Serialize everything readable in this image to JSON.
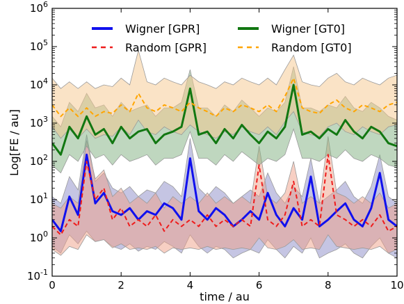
{
  "chart_data": {
    "type": "line",
    "xlabel": "time / au",
    "ylabel": "Log[FE / au]",
    "xlim": [
      0,
      10
    ],
    "ylim": [
      0.1,
      1000000
    ],
    "yscale": "log",
    "grid": false,
    "legend_position": "top",
    "x_ticks": [
      "0",
      "2",
      "4",
      "6",
      "8",
      "10"
    ],
    "y_ticks": [
      {
        "base": "10",
        "exp": "-1"
      },
      {
        "base": "10",
        "exp": "0"
      },
      {
        "base": "10",
        "exp": "1"
      },
      {
        "base": "10",
        "exp": "2"
      },
      {
        "base": "10",
        "exp": "3"
      },
      {
        "base": "10",
        "exp": "4"
      },
      {
        "base": "10",
        "exp": "5"
      },
      {
        "base": "10",
        "exp": "6"
      }
    ],
    "x": [
      0.0,
      0.25,
      0.5,
      0.75,
      1.0,
      1.25,
      1.5,
      1.75,
      2.0,
      2.25,
      2.5,
      2.75,
      3.0,
      3.25,
      3.5,
      3.75,
      4.0,
      4.25,
      4.5,
      4.75,
      5.0,
      5.25,
      5.5,
      5.75,
      6.0,
      6.25,
      6.5,
      6.75,
      7.0,
      7.25,
      7.5,
      7.75,
      8.0,
      8.25,
      8.5,
      8.75,
      9.0,
      9.25,
      9.5,
      9.75,
      10.0
    ],
    "series": [
      {
        "name": "Wigner [GPR]",
        "color": "#1010ee",
        "style": "solid",
        "values": [
          3,
          1.5,
          12,
          4,
          150,
          8,
          15,
          5,
          4,
          6,
          3,
          5,
          4,
          8,
          6,
          3,
          120,
          5,
          3,
          6,
          4,
          2,
          3,
          5,
          3,
          15,
          4,
          2,
          6,
          3,
          40,
          2,
          3,
          5,
          8,
          3,
          2,
          6,
          50,
          3,
          2
        ],
        "band_upper": [
          12,
          8,
          40,
          18,
          500,
          30,
          50,
          20,
          15,
          22,
          12,
          18,
          15,
          30,
          22,
          12,
          400,
          20,
          12,
          22,
          15,
          8,
          12,
          18,
          12,
          50,
          15,
          8,
          22,
          12,
          120,
          8,
          12,
          18,
          30,
          12,
          8,
          22,
          150,
          12,
          8
        ],
        "band_lower": [
          0.6,
          0.4,
          1.2,
          0.7,
          1.5,
          0.8,
          0.9,
          0.6,
          0.5,
          0.7,
          0.45,
          0.6,
          0.5,
          0.8,
          0.6,
          0.4,
          1.2,
          0.6,
          0.4,
          0.6,
          0.5,
          0.3,
          0.4,
          0.5,
          0.4,
          0.9,
          0.5,
          0.3,
          0.6,
          0.4,
          1.0,
          0.3,
          0.4,
          0.5,
          0.7,
          0.4,
          0.3,
          0.6,
          1.0,
          0.4,
          0.3
        ],
        "band_color": "#8c8cc8"
      },
      {
        "name": "Random [GPR]",
        "color": "#ee1c1c",
        "style": "dashed",
        "values": [
          2,
          1.2,
          3,
          2,
          100,
          10,
          20,
          3,
          6,
          2,
          3,
          2,
          4,
          1.5,
          3,
          2,
          3,
          2,
          4,
          2,
          3,
          2,
          3,
          2,
          80,
          3,
          2,
          4,
          30,
          2,
          3,
          2,
          150,
          4,
          3,
          2,
          3,
          2,
          4,
          1.5,
          2
        ],
        "band_upper": [
          8,
          6,
          12,
          8,
          350,
          35,
          60,
          12,
          20,
          8,
          12,
          8,
          15,
          6,
          12,
          8,
          12,
          8,
          15,
          8,
          12,
          8,
          12,
          8,
          250,
          12,
          8,
          15,
          100,
          8,
          12,
          8,
          450,
          15,
          12,
          8,
          12,
          8,
          15,
          6,
          8
        ],
        "band_lower": [
          0.5,
          0.35,
          0.6,
          0.5,
          1.2,
          0.8,
          0.9,
          0.55,
          0.7,
          0.5,
          0.55,
          0.5,
          0.6,
          0.4,
          0.55,
          0.5,
          0.55,
          0.5,
          0.6,
          0.5,
          0.55,
          0.5,
          0.55,
          0.5,
          1.0,
          0.55,
          0.5,
          0.6,
          0.9,
          0.5,
          0.55,
          0.5,
          1.2,
          0.6,
          0.55,
          0.5,
          0.55,
          0.5,
          0.6,
          0.4,
          0.5
        ],
        "band_color": "#f0a088"
      },
      {
        "name": "Wigner [GT0]",
        "color": "#117711",
        "style": "solid",
        "values": [
          300,
          150,
          800,
          400,
          1500,
          500,
          700,
          300,
          800,
          400,
          600,
          700,
          300,
          500,
          600,
          800,
          8000,
          500,
          600,
          300,
          700,
          400,
          900,
          500,
          300,
          600,
          400,
          800,
          10000,
          500,
          600,
          400,
          700,
          500,
          1200,
          600,
          400,
          800,
          600,
          300,
          250
        ],
        "band_upper": [
          1500,
          800,
          3500,
          2000,
          6000,
          2500,
          3000,
          1500,
          3500,
          2000,
          2500,
          3000,
          1500,
          2500,
          2500,
          3500,
          25000,
          2500,
          2500,
          1500,
          3000,
          2000,
          4000,
          2500,
          1500,
          2500,
          2000,
          3500,
          30000,
          2500,
          2500,
          2000,
          3000,
          2500,
          5000,
          2500,
          2000,
          3500,
          2500,
          1500,
          1200
        ],
        "band_lower": [
          80,
          50,
          150,
          100,
          250,
          120,
          150,
          80,
          150,
          100,
          120,
          150,
          80,
          120,
          120,
          150,
          600,
          120,
          120,
          80,
          150,
          100,
          180,
          120,
          80,
          120,
          100,
          150,
          700,
          120,
          120,
          100,
          150,
          120,
          200,
          120,
          100,
          150,
          120,
          80,
          70
        ],
        "band_color": "#80b080"
      },
      {
        "name": "Random [GT0]",
        "color": "#ffa500",
        "style": "dashed",
        "values": [
          3000,
          1500,
          2500,
          1500,
          2500,
          1500,
          2000,
          1800,
          3000,
          2000,
          6000,
          2500,
          2000,
          3000,
          2500,
          2000,
          3500,
          2500,
          2000,
          1500,
          2500,
          2000,
          3000,
          2500,
          2000,
          3000,
          2000,
          5000,
          15000,
          2500,
          2000,
          1800,
          3000,
          4000,
          2500,
          2000,
          3000,
          2500,
          2000,
          3000,
          3500
        ],
        "band_upper": [
          15000,
          8000,
          12000,
          8000,
          12000,
          8000,
          10000,
          9000,
          15000,
          10000,
          80000,
          12000,
          10000,
          15000,
          12000,
          10000,
          18000,
          12000,
          10000,
          8000,
          12000,
          10000,
          15000,
          12000,
          10000,
          15000,
          10000,
          25000,
          60000,
          12000,
          10000,
          9000,
          15000,
          20000,
          12000,
          10000,
          15000,
          12000,
          10000,
          15000,
          18000
        ],
        "band_lower": [
          800,
          400,
          700,
          400,
          700,
          400,
          500,
          450,
          800,
          500,
          1200,
          600,
          500,
          800,
          600,
          500,
          900,
          600,
          500,
          400,
          600,
          500,
          800,
          600,
          500,
          800,
          500,
          1100,
          2000,
          600,
          500,
          450,
          800,
          1000,
          600,
          500,
          800,
          600,
          500,
          800,
          900
        ],
        "band_color": "#f6c88e"
      }
    ]
  }
}
